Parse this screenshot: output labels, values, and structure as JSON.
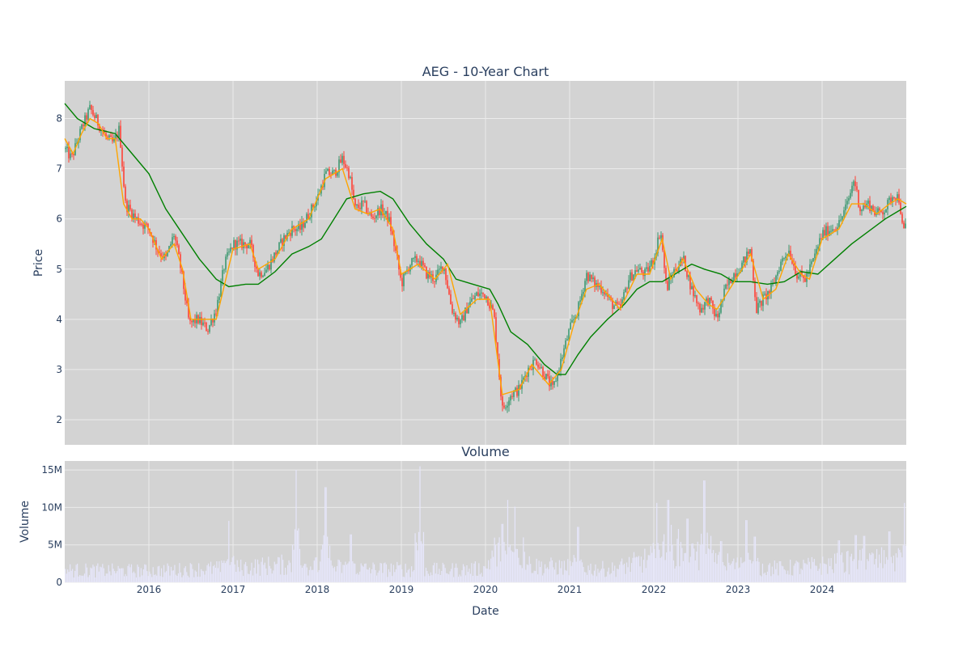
{
  "colors": {
    "plot_bg": "#d3d3d3",
    "grid": "#ebebeb",
    "candle_up": "#3d9970",
    "candle_down": "#ff4136",
    "ma_short": "#ffa500",
    "ma_long": "#008000",
    "volume_bar": "#e6e6fa",
    "text": "#2a3f5f"
  },
  "chart_data": [
    {
      "type": "candlestick",
      "title": "AEG - 10-Year Chart",
      "ylabel": "Price",
      "ylim": [
        1.5,
        8.75
      ],
      "yticks": [
        2,
        3,
        4,
        5,
        6,
        7,
        8
      ],
      "xlim": [
        2015.0,
        2025.0
      ],
      "xticks": [
        {
          "value": 2016,
          "label": "2016"
        },
        {
          "value": 2017,
          "label": "2017"
        },
        {
          "value": 2018,
          "label": "2018"
        },
        {
          "value": 2019,
          "label": "2019"
        },
        {
          "value": 2020,
          "label": "2020"
        },
        {
          "value": 2021,
          "label": "2021"
        },
        {
          "value": 2022,
          "label": "2022"
        },
        {
          "value": 2023,
          "label": "2023"
        },
        {
          "value": 2024,
          "label": "2024"
        }
      ],
      "price_path": [
        [
          2015.0,
          7.4
        ],
        [
          2015.08,
          7.2
        ],
        [
          2015.2,
          7.8
        ],
        [
          2015.3,
          8.2
        ],
        [
          2015.4,
          7.9
        ],
        [
          2015.5,
          7.6
        ],
        [
          2015.58,
          7.5
        ],
        [
          2015.65,
          7.8
        ],
        [
          2015.72,
          6.3
        ],
        [
          2015.85,
          6.0
        ],
        [
          2016.0,
          5.8
        ],
        [
          2016.1,
          5.4
        ],
        [
          2016.2,
          5.2
        ],
        [
          2016.3,
          5.7
        ],
        [
          2016.38,
          5.0
        ],
        [
          2016.48,
          3.9
        ],
        [
          2016.58,
          4.0
        ],
        [
          2016.7,
          3.8
        ],
        [
          2016.8,
          4.2
        ],
        [
          2016.9,
          5.1
        ],
        [
          2017.0,
          5.5
        ],
        [
          2017.1,
          5.5
        ],
        [
          2017.2,
          5.5
        ],
        [
          2017.3,
          4.9
        ],
        [
          2017.4,
          5.0
        ],
        [
          2017.5,
          5.3
        ],
        [
          2017.6,
          5.6
        ],
        [
          2017.7,
          5.8
        ],
        [
          2017.8,
          5.8
        ],
        [
          2017.9,
          6.1
        ],
        [
          2018.0,
          6.4
        ],
        [
          2018.1,
          6.9
        ],
        [
          2018.2,
          6.9
        ],
        [
          2018.3,
          7.2
        ],
        [
          2018.38,
          6.9
        ],
        [
          2018.45,
          6.2
        ],
        [
          2018.55,
          6.3
        ],
        [
          2018.65,
          6.0
        ],
        [
          2018.75,
          6.2
        ],
        [
          2018.85,
          6.0
        ],
        [
          2018.95,
          5.2
        ],
        [
          2019.0,
          4.7
        ],
        [
          2019.1,
          5.1
        ],
        [
          2019.2,
          5.2
        ],
        [
          2019.3,
          4.9
        ],
        [
          2019.4,
          4.8
        ],
        [
          2019.5,
          5.1
        ],
        [
          2019.6,
          4.2
        ],
        [
          2019.7,
          3.9
        ],
        [
          2019.8,
          4.3
        ],
        [
          2019.9,
          4.5
        ],
        [
          2020.0,
          4.5
        ],
        [
          2020.1,
          4.1
        ],
        [
          2020.2,
          2.2
        ],
        [
          2020.3,
          2.5
        ],
        [
          2020.4,
          2.6
        ],
        [
          2020.5,
          3.0
        ],
        [
          2020.6,
          3.2
        ],
        [
          2020.7,
          2.9
        ],
        [
          2020.8,
          2.6
        ],
        [
          2020.9,
          3.2
        ],
        [
          2021.0,
          3.8
        ],
        [
          2021.1,
          4.2
        ],
        [
          2021.2,
          4.9
        ],
        [
          2021.3,
          4.7
        ],
        [
          2021.4,
          4.6
        ],
        [
          2021.5,
          4.3
        ],
        [
          2021.6,
          4.2
        ],
        [
          2021.7,
          4.8
        ],
        [
          2021.8,
          5.0
        ],
        [
          2021.9,
          4.9
        ],
        [
          2022.0,
          5.2
        ],
        [
          2022.08,
          5.8
        ],
        [
          2022.15,
          4.6
        ],
        [
          2022.25,
          5.0
        ],
        [
          2022.35,
          5.2
        ],
        [
          2022.45,
          4.6
        ],
        [
          2022.55,
          4.2
        ],
        [
          2022.65,
          4.4
        ],
        [
          2022.75,
          4.0
        ],
        [
          2022.85,
          4.6
        ],
        [
          2022.95,
          4.9
        ],
        [
          2023.05,
          5.1
        ],
        [
          2023.15,
          5.4
        ],
        [
          2023.22,
          4.2
        ],
        [
          2023.3,
          4.4
        ],
        [
          2023.4,
          4.6
        ],
        [
          2023.5,
          5.1
        ],
        [
          2023.6,
          5.4
        ],
        [
          2023.7,
          4.9
        ],
        [
          2023.8,
          4.8
        ],
        [
          2023.9,
          5.2
        ],
        [
          2024.0,
          5.7
        ],
        [
          2024.1,
          5.8
        ],
        [
          2024.2,
          5.9
        ],
        [
          2024.3,
          6.3
        ],
        [
          2024.38,
          6.8
        ],
        [
          2024.45,
          6.2
        ],
        [
          2024.55,
          6.3
        ],
        [
          2024.65,
          6.1
        ],
        [
          2024.75,
          6.2
        ],
        [
          2024.85,
          6.5
        ],
        [
          2024.92,
          6.4
        ],
        [
          2024.96,
          5.7
        ],
        [
          2025.0,
          5.9
        ]
      ],
      "ma_short_path": [
        [
          2015.0,
          7.6
        ],
        [
          2015.1,
          7.3
        ],
        [
          2015.2,
          7.7
        ],
        [
          2015.3,
          8.0
        ],
        [
          2015.4,
          7.9
        ],
        [
          2015.5,
          7.6
        ],
        [
          2015.6,
          7.6
        ],
        [
          2015.7,
          6.3
        ],
        [
          2015.8,
          6.0
        ],
        [
          2015.9,
          6.0
        ],
        [
          2016.0,
          5.8
        ],
        [
          2016.15,
          5.2
        ],
        [
          2016.3,
          5.5
        ],
        [
          2016.4,
          5.0
        ],
        [
          2016.5,
          4.0
        ],
        [
          2016.7,
          4.0
        ],
        [
          2016.8,
          4.0
        ],
        [
          2016.9,
          4.7
        ],
        [
          2017.0,
          5.4
        ],
        [
          2017.2,
          5.5
        ],
        [
          2017.3,
          5.0
        ],
        [
          2017.5,
          5.2
        ],
        [
          2017.7,
          5.8
        ],
        [
          2017.9,
          6.0
        ],
        [
          2018.1,
          6.8
        ],
        [
          2018.3,
          7.0
        ],
        [
          2018.45,
          6.2
        ],
        [
          2018.6,
          6.1
        ],
        [
          2018.75,
          6.2
        ],
        [
          2018.9,
          5.8
        ],
        [
          2019.0,
          4.9
        ],
        [
          2019.2,
          5.1
        ],
        [
          2019.4,
          4.8
        ],
        [
          2019.55,
          5.1
        ],
        [
          2019.7,
          4.1
        ],
        [
          2019.9,
          4.4
        ],
        [
          2020.05,
          4.4
        ],
        [
          2020.2,
          2.5
        ],
        [
          2020.4,
          2.6
        ],
        [
          2020.55,
          3.1
        ],
        [
          2020.75,
          2.7
        ],
        [
          2020.9,
          3.0
        ],
        [
          2021.05,
          3.9
        ],
        [
          2021.2,
          4.6
        ],
        [
          2021.35,
          4.7
        ],
        [
          2021.5,
          4.4
        ],
        [
          2021.6,
          4.2
        ],
        [
          2021.8,
          4.9
        ],
        [
          2021.95,
          4.9
        ],
        [
          2022.1,
          5.6
        ],
        [
          2022.2,
          4.8
        ],
        [
          2022.35,
          5.2
        ],
        [
          2022.5,
          4.6
        ],
        [
          2022.65,
          4.3
        ],
        [
          2022.75,
          4.2
        ],
        [
          2022.9,
          4.6
        ],
        [
          2023.05,
          5.0
        ],
        [
          2023.15,
          5.3
        ],
        [
          2023.3,
          4.4
        ],
        [
          2023.45,
          4.6
        ],
        [
          2023.6,
          5.3
        ],
        [
          2023.75,
          4.9
        ],
        [
          2023.85,
          4.8
        ],
        [
          2024.0,
          5.6
        ],
        [
          2024.2,
          5.8
        ],
        [
          2024.35,
          6.3
        ],
        [
          2024.5,
          6.3
        ],
        [
          2024.65,
          6.1
        ],
        [
          2024.8,
          6.3
        ],
        [
          2024.9,
          6.4
        ],
        [
          2025.0,
          6.3
        ]
      ],
      "ma_long_path": [
        [
          2015.0,
          8.3
        ],
        [
          2015.15,
          8.0
        ],
        [
          2015.35,
          7.8
        ],
        [
          2015.6,
          7.7
        ],
        [
          2015.8,
          7.3
        ],
        [
          2016.0,
          6.9
        ],
        [
          2016.2,
          6.2
        ],
        [
          2016.4,
          5.7
        ],
        [
          2016.6,
          5.2
        ],
        [
          2016.8,
          4.8
        ],
        [
          2016.95,
          4.65
        ],
        [
          2017.15,
          4.7
        ],
        [
          2017.3,
          4.7
        ],
        [
          2017.5,
          4.95
        ],
        [
          2017.7,
          5.3
        ],
        [
          2017.9,
          5.45
        ],
        [
          2018.05,
          5.6
        ],
        [
          2018.2,
          6.0
        ],
        [
          2018.35,
          6.4
        ],
        [
          2018.55,
          6.5
        ],
        [
          2018.75,
          6.55
        ],
        [
          2018.9,
          6.4
        ],
        [
          2019.1,
          5.9
        ],
        [
          2019.3,
          5.5
        ],
        [
          2019.5,
          5.2
        ],
        [
          2019.65,
          4.8
        ],
        [
          2019.85,
          4.7
        ],
        [
          2020.05,
          4.6
        ],
        [
          2020.15,
          4.3
        ],
        [
          2020.3,
          3.75
        ],
        [
          2020.5,
          3.5
        ],
        [
          2020.7,
          3.1
        ],
        [
          2020.85,
          2.9
        ],
        [
          2020.95,
          2.9
        ],
        [
          2021.1,
          3.3
        ],
        [
          2021.25,
          3.65
        ],
        [
          2021.45,
          4.0
        ],
        [
          2021.65,
          4.3
        ],
        [
          2021.8,
          4.6
        ],
        [
          2021.95,
          4.75
        ],
        [
          2022.1,
          4.75
        ],
        [
          2022.25,
          4.9
        ],
        [
          2022.45,
          5.1
        ],
        [
          2022.6,
          5.0
        ],
        [
          2022.8,
          4.9
        ],
        [
          2022.95,
          4.75
        ],
        [
          2023.15,
          4.75
        ],
        [
          2023.35,
          4.7
        ],
        [
          2023.55,
          4.75
        ],
        [
          2023.75,
          4.95
        ],
        [
          2023.95,
          4.9
        ],
        [
          2024.15,
          5.2
        ],
        [
          2024.35,
          5.5
        ],
        [
          2024.55,
          5.75
        ],
        [
          2024.75,
          6.0
        ],
        [
          2024.9,
          6.15
        ],
        [
          2025.0,
          6.25
        ]
      ]
    },
    {
      "type": "bar",
      "title": "Volume",
      "xlabel": "Date",
      "ylabel": "Volume",
      "ylim": [
        0,
        16200000
      ],
      "yticks": [
        {
          "value": 0,
          "label": "0"
        },
        {
          "value": 5000000,
          "label": "5M"
        },
        {
          "value": 10000000,
          "label": "10M"
        },
        {
          "value": 15000000,
          "label": "15M"
        }
      ],
      "base_volume": [
        [
          2015.0,
          1800000
        ],
        [
          2016.0,
          1700000
        ],
        [
          2017.0,
          2100000
        ],
        [
          2017.6,
          2600000
        ],
        [
          2018.0,
          2400000
        ],
        [
          2018.5,
          2000000
        ],
        [
          2019.0,
          1900000
        ],
        [
          2019.5,
          1800000
        ],
        [
          2020.0,
          2000000
        ],
        [
          2020.1,
          4500000
        ],
        [
          2020.3,
          3800000
        ],
        [
          2020.6,
          2400000
        ],
        [
          2021.0,
          2200000
        ],
        [
          2021.5,
          1900000
        ],
        [
          2022.0,
          3600000
        ],
        [
          2022.2,
          5500000
        ],
        [
          2022.5,
          3800000
        ],
        [
          2022.8,
          3000000
        ],
        [
          2023.0,
          2500000
        ],
        [
          2023.5,
          2000000
        ],
        [
          2024.0,
          2500000
        ],
        [
          2024.5,
          3200000
        ],
        [
          2025.0,
          3500000
        ]
      ],
      "spikes": [
        [
          2017.75,
          15000000
        ],
        [
          2017.78,
          7200000
        ],
        [
          2018.1,
          12700000
        ],
        [
          2019.22,
          15500000
        ],
        [
          2020.2,
          7800000
        ],
        [
          2020.27,
          11000000
        ],
        [
          2020.35,
          10100000
        ],
        [
          2020.45,
          6000000
        ],
        [
          2021.1,
          7400000
        ],
        [
          2022.04,
          10600000
        ],
        [
          2022.17,
          11000000
        ],
        [
          2022.4,
          8500000
        ],
        [
          2022.6,
          13600000
        ],
        [
          2022.68,
          6200000
        ],
        [
          2022.8,
          5500000
        ],
        [
          2023.1,
          8300000
        ],
        [
          2023.2,
          6100000
        ],
        [
          2024.2,
          5600000
        ],
        [
          2024.4,
          6300000
        ],
        [
          2024.5,
          6200000
        ],
        [
          2024.8,
          6800000
        ],
        [
          2024.98,
          10600000
        ],
        [
          2016.95,
          8200000
        ],
        [
          2018.4,
          6400000
        ]
      ]
    }
  ]
}
